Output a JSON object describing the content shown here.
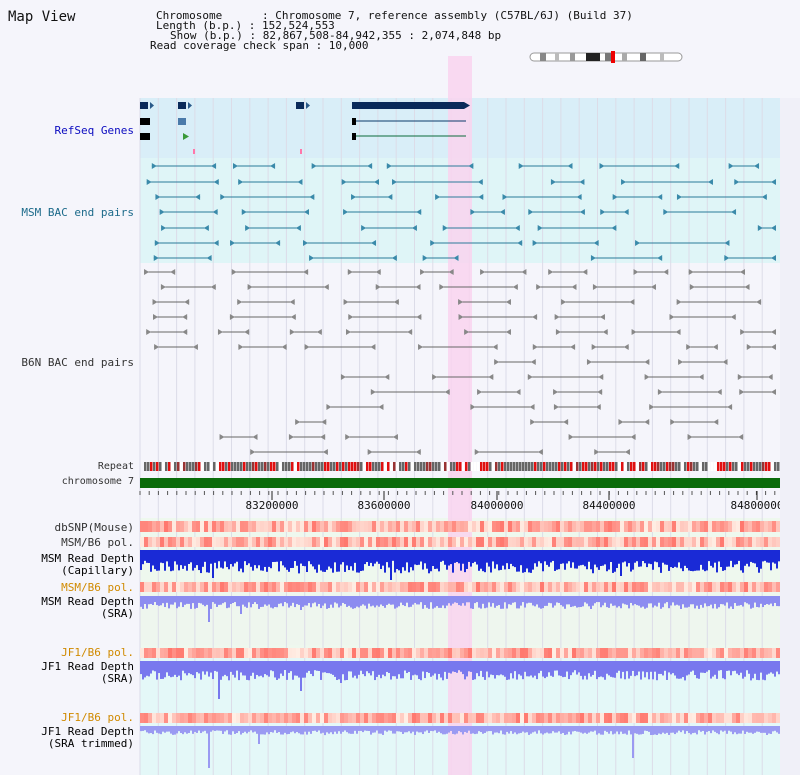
{
  "map_view": {
    "title": "Map View",
    "chromosome_line": "Chromosome      : Chromosome 7, reference assembly (C57BL/6J) (Build 37)",
    "length_line": "Length (b.p.) : 152,524,553",
    "show_line": "Show (b.p.) : 82,867,508-84,942,355 : 2,074,848 bp",
    "coverage_line": "Read coverage check span : 10,000"
  },
  "tracks": {
    "refseq": "RefSeq Genes",
    "msm_bac": "MSM BAC end pairs",
    "b6n_bac": "B6N BAC end pairs",
    "repeat": "Repeat",
    "chromosome": "chromosome 7",
    "dbsnp": "dbSNP(Mouse)",
    "msm_b6_pol_1": "MSM/B6 pol.",
    "msm_depth_cap_1": "MSM Read Depth",
    "msm_depth_cap_2": "(Capillary)",
    "msm_b6_pol_2": "MSM/B6 pol.",
    "msm_depth_sra_1": "MSM Read Depth",
    "msm_depth_sra_2": "(SRA)",
    "jf1_b6_pol_1": "JF1/B6 pol.",
    "jf1_depth_sra_1": "JF1 Read Depth",
    "jf1_depth_sra_2": "(SRA)",
    "jf1_b6_pol_2": "JF1/B6 pol.",
    "jf1_depth_trim_1": "JF1 Read Depth",
    "jf1_depth_trim_2": "(SRA trimmed)"
  },
  "axis": {
    "ticks": [
      "83200000",
      "83600000",
      "84000000",
      "84400000",
      "84800000"
    ]
  },
  "colors": {
    "refseq_bg": "#d9eef8",
    "bac_bg": "#dff5f7",
    "highlight": "#f9d4ee",
    "chromosome_bar": "#0a6b0a",
    "depth_blue": "#2233dd",
    "depth_light": "#7d7df2",
    "snp_red": "#f05050",
    "label_blue": "#0b0bc0",
    "label_orange": "#d08a00"
  }
}
